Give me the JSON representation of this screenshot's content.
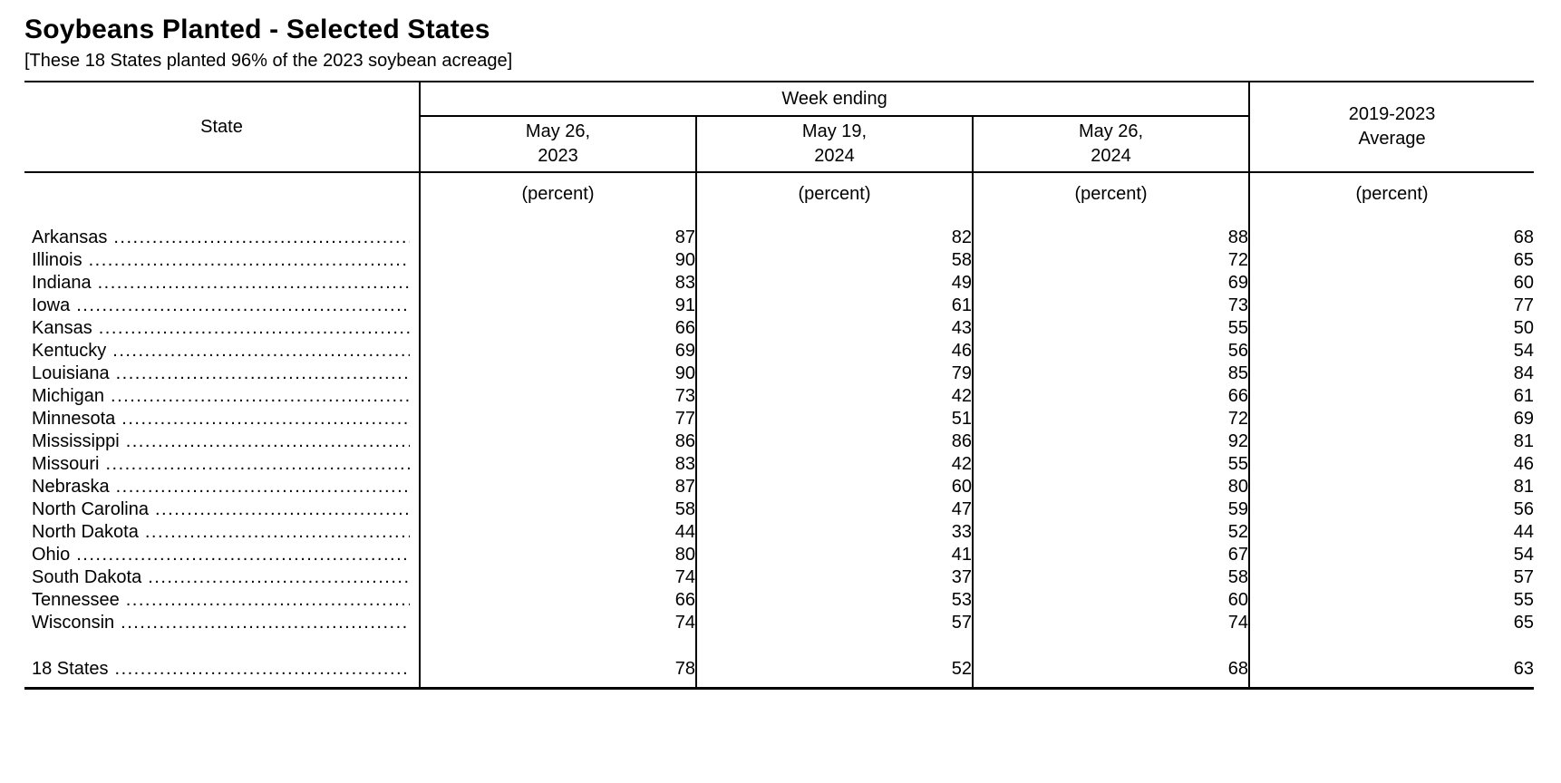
{
  "page": {
    "title": "Soybeans Planted - Selected States",
    "subtitle": "[These 18 States planted 96% of the 2023 soybean acreage]"
  },
  "table": {
    "state_header": "State",
    "group_header": "Week ending",
    "columns": [
      {
        "line1": "May 26,",
        "line2": "2023"
      },
      {
        "line1": "May 19,",
        "line2": "2024"
      },
      {
        "line1": "May 26,",
        "line2": "2024"
      }
    ],
    "average_column": {
      "line1": "2019-2023",
      "line2": "Average"
    },
    "unit": "(percent)",
    "rows": [
      {
        "state": "Arkansas",
        "values": [
          87,
          82,
          88,
          68
        ]
      },
      {
        "state": "Illinois",
        "values": [
          90,
          58,
          72,
          65
        ]
      },
      {
        "state": "Indiana",
        "values": [
          83,
          49,
          69,
          60
        ]
      },
      {
        "state": "Iowa",
        "values": [
          91,
          61,
          73,
          77
        ]
      },
      {
        "state": "Kansas",
        "values": [
          66,
          43,
          55,
          50
        ]
      },
      {
        "state": "Kentucky",
        "values": [
          69,
          46,
          56,
          54
        ]
      },
      {
        "state": "Louisiana",
        "values": [
          90,
          79,
          85,
          84
        ]
      },
      {
        "state": "Michigan",
        "values": [
          73,
          42,
          66,
          61
        ]
      },
      {
        "state": "Minnesota",
        "values": [
          77,
          51,
          72,
          69
        ]
      },
      {
        "state": "Mississippi",
        "values": [
          86,
          86,
          92,
          81
        ]
      },
      {
        "state": "Missouri",
        "values": [
          83,
          42,
          55,
          46
        ]
      },
      {
        "state": "Nebraska",
        "values": [
          87,
          60,
          80,
          81
        ]
      },
      {
        "state": "North Carolina",
        "values": [
          58,
          47,
          59,
          56
        ]
      },
      {
        "state": "North Dakota",
        "values": [
          44,
          33,
          52,
          44
        ]
      },
      {
        "state": "Ohio",
        "values": [
          80,
          41,
          67,
          54
        ]
      },
      {
        "state": "South Dakota",
        "values": [
          74,
          37,
          58,
          57
        ]
      },
      {
        "state": "Tennessee",
        "values": [
          66,
          53,
          60,
          55
        ]
      },
      {
        "state": "Wisconsin",
        "values": [
          74,
          57,
          74,
          65
        ]
      }
    ],
    "total_row": {
      "state": "18 States",
      "values": [
        78,
        52,
        68,
        63
      ]
    }
  },
  "chart_data": {
    "type": "table",
    "title": "Soybeans Planted - Selected States",
    "columns": [
      "State",
      "May 26, 2023",
      "May 19, 2024",
      "May 26, 2024",
      "2019-2023 Average"
    ],
    "unit": "percent",
    "rows": [
      [
        "Arkansas",
        87,
        82,
        88,
        68
      ],
      [
        "Illinois",
        90,
        58,
        72,
        65
      ],
      [
        "Indiana",
        83,
        49,
        69,
        60
      ],
      [
        "Iowa",
        91,
        61,
        73,
        77
      ],
      [
        "Kansas",
        66,
        43,
        55,
        50
      ],
      [
        "Kentucky",
        69,
        46,
        56,
        54
      ],
      [
        "Louisiana",
        90,
        79,
        85,
        84
      ],
      [
        "Michigan",
        73,
        42,
        66,
        61
      ],
      [
        "Minnesota",
        77,
        51,
        72,
        69
      ],
      [
        "Mississippi",
        86,
        86,
        92,
        81
      ],
      [
        "Missouri",
        83,
        42,
        55,
        46
      ],
      [
        "Nebraska",
        87,
        60,
        80,
        81
      ],
      [
        "North Carolina",
        58,
        47,
        59,
        56
      ],
      [
        "North Dakota",
        44,
        33,
        52,
        44
      ],
      [
        "Ohio",
        80,
        41,
        67,
        54
      ],
      [
        "South Dakota",
        74,
        37,
        58,
        57
      ],
      [
        "Tennessee",
        66,
        53,
        60,
        55
      ],
      [
        "Wisconsin",
        74,
        57,
        74,
        65
      ],
      [
        "18 States",
        78,
        52,
        68,
        63
      ]
    ]
  }
}
